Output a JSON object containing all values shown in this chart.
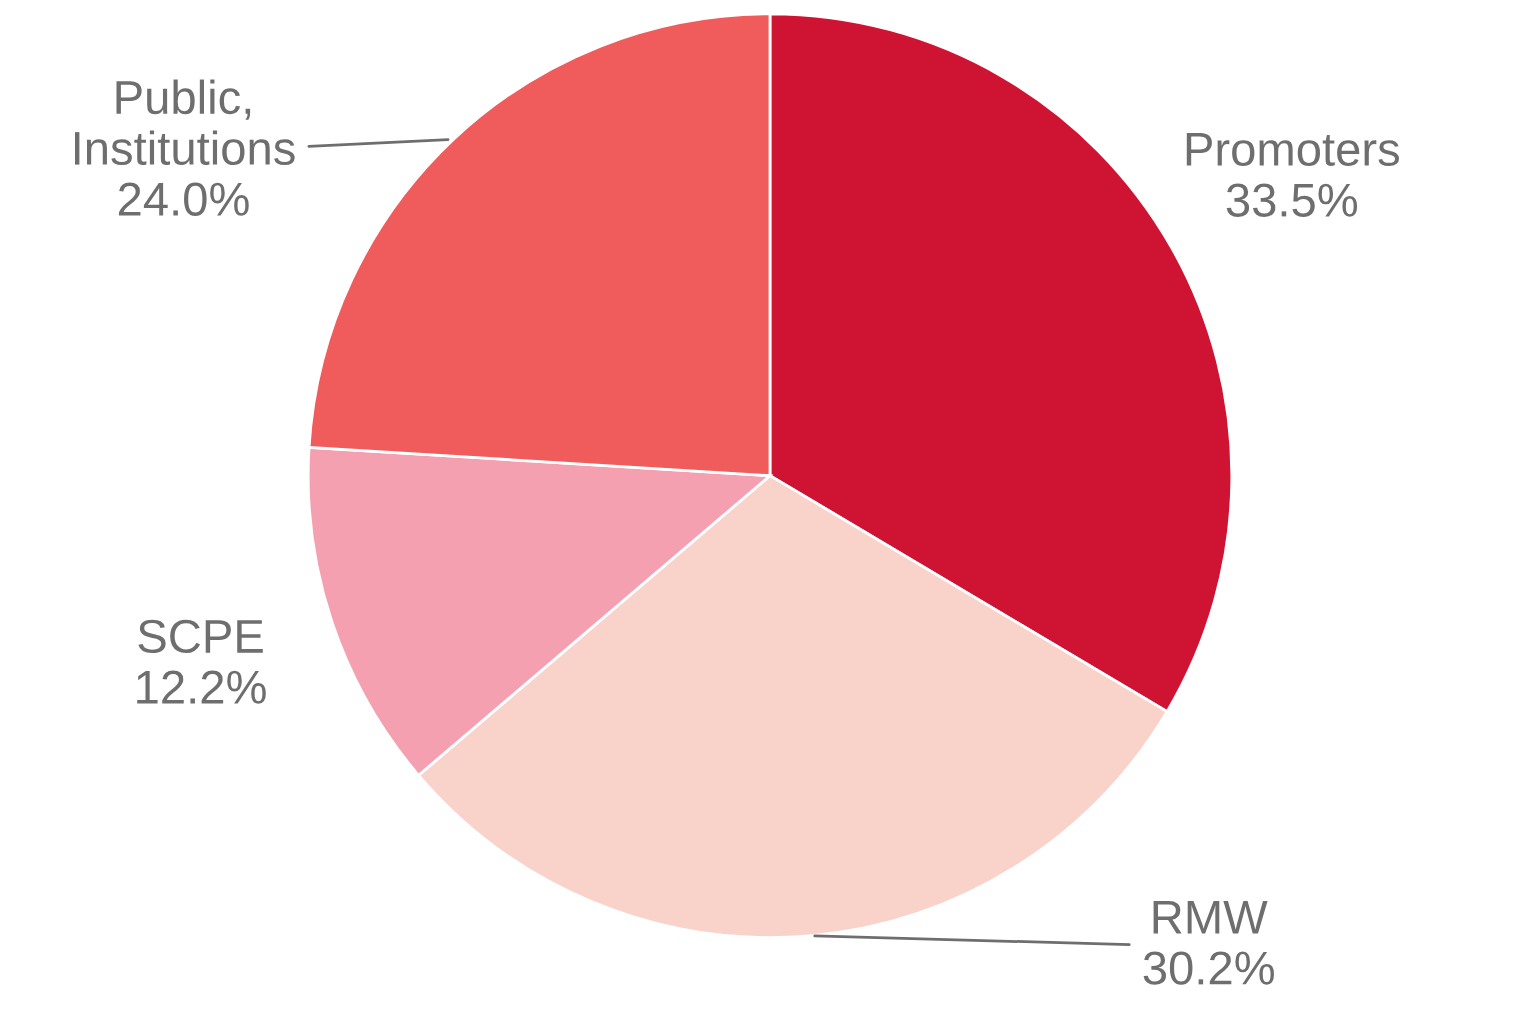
{
  "chart_data": {
    "type": "pie",
    "categories": [
      "Promoters",
      "RMW",
      "SCPE",
      "Public,\nInstitutions"
    ],
    "values": [
      33.5,
      30.2,
      12.2,
      24.0
    ],
    "colors": [
      "#cf1433",
      "#f9d3ca",
      "#f4a0b0",
      "#f05c5c"
    ],
    "value_labels": [
      "33.5%",
      "30.2%",
      "12.2%",
      "24.0%"
    ],
    "legend": false
  }
}
